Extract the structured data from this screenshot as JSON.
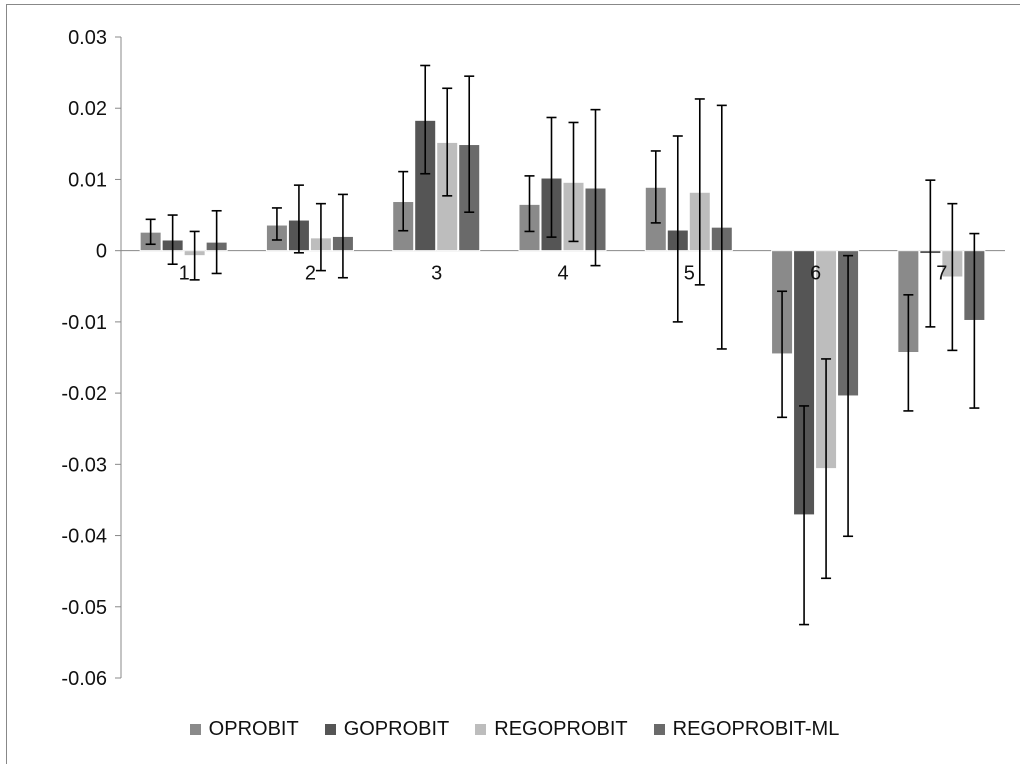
{
  "chart_data": {
    "type": "bar",
    "categories": [
      "1",
      "2",
      "3",
      "4",
      "5",
      "6",
      "7"
    ],
    "series": [
      {
        "name": "OPROBIT",
        "color": "#8a8a8a",
        "values": [
          0.0026,
          0.0036,
          0.0069,
          0.0065,
          0.0089,
          -0.0145,
          -0.0143
        ],
        "error_low": [
          0.0009,
          0.0015,
          0.0028,
          0.0027,
          0.0039,
          -0.0234,
          -0.0225
        ],
        "error_high": [
          0.0044,
          0.006,
          0.0111,
          0.0105,
          0.014,
          -0.0057,
          -0.0062
        ]
      },
      {
        "name": "GOPROBIT",
        "color": "#555555",
        "values": [
          0.0015,
          0.0043,
          0.0183,
          0.0102,
          0.0029,
          -0.0371,
          -0.0004
        ],
        "error_low": [
          -0.0019,
          -0.0003,
          0.0108,
          0.0019,
          -0.01,
          -0.0525,
          -0.0107
        ],
        "error_high": [
          0.005,
          0.0092,
          0.026,
          0.0187,
          0.0161,
          -0.0218,
          0.0099
        ]
      },
      {
        "name": "REGOPROBIT",
        "color": "#bdbdbd",
        "values": [
          -0.0007,
          0.0018,
          0.0152,
          0.0096,
          0.0082,
          -0.0306,
          -0.0037
        ],
        "error_low": [
          -0.0041,
          -0.0028,
          0.0077,
          0.0013,
          -0.0048,
          -0.046,
          -0.014
        ],
        "error_high": [
          0.0027,
          0.0066,
          0.0228,
          0.018,
          0.0213,
          -0.0152,
          0.0066
        ]
      },
      {
        "name": "REGOPROBIT-ML",
        "color": "#6a6a6a",
        "values": [
          0.0012,
          0.002,
          0.0149,
          0.0088,
          0.0033,
          -0.0204,
          -0.0098
        ],
        "error_low": [
          -0.0032,
          -0.0038,
          0.0054,
          -0.0021,
          -0.0138,
          -0.0401,
          -0.0221
        ],
        "error_high": [
          0.0056,
          0.0079,
          0.0245,
          0.0198,
          0.0204,
          -0.0007,
          0.0024
        ]
      }
    ],
    "ylim": [
      -0.06,
      0.03
    ],
    "yticks": [
      "0.03",
      "0.02",
      "0.01",
      "0",
      "-0.01",
      "-0.02",
      "-0.03",
      "-0.04",
      "-0.05",
      "-0.06"
    ],
    "ytick_values": [
      0.03,
      0.02,
      0.01,
      0,
      -0.01,
      -0.02,
      -0.03,
      -0.04,
      -0.05,
      -0.06
    ],
    "grid": false,
    "legend_position": "bottom",
    "error_bars": true,
    "title": "",
    "xlabel": "",
    "ylabel": ""
  }
}
